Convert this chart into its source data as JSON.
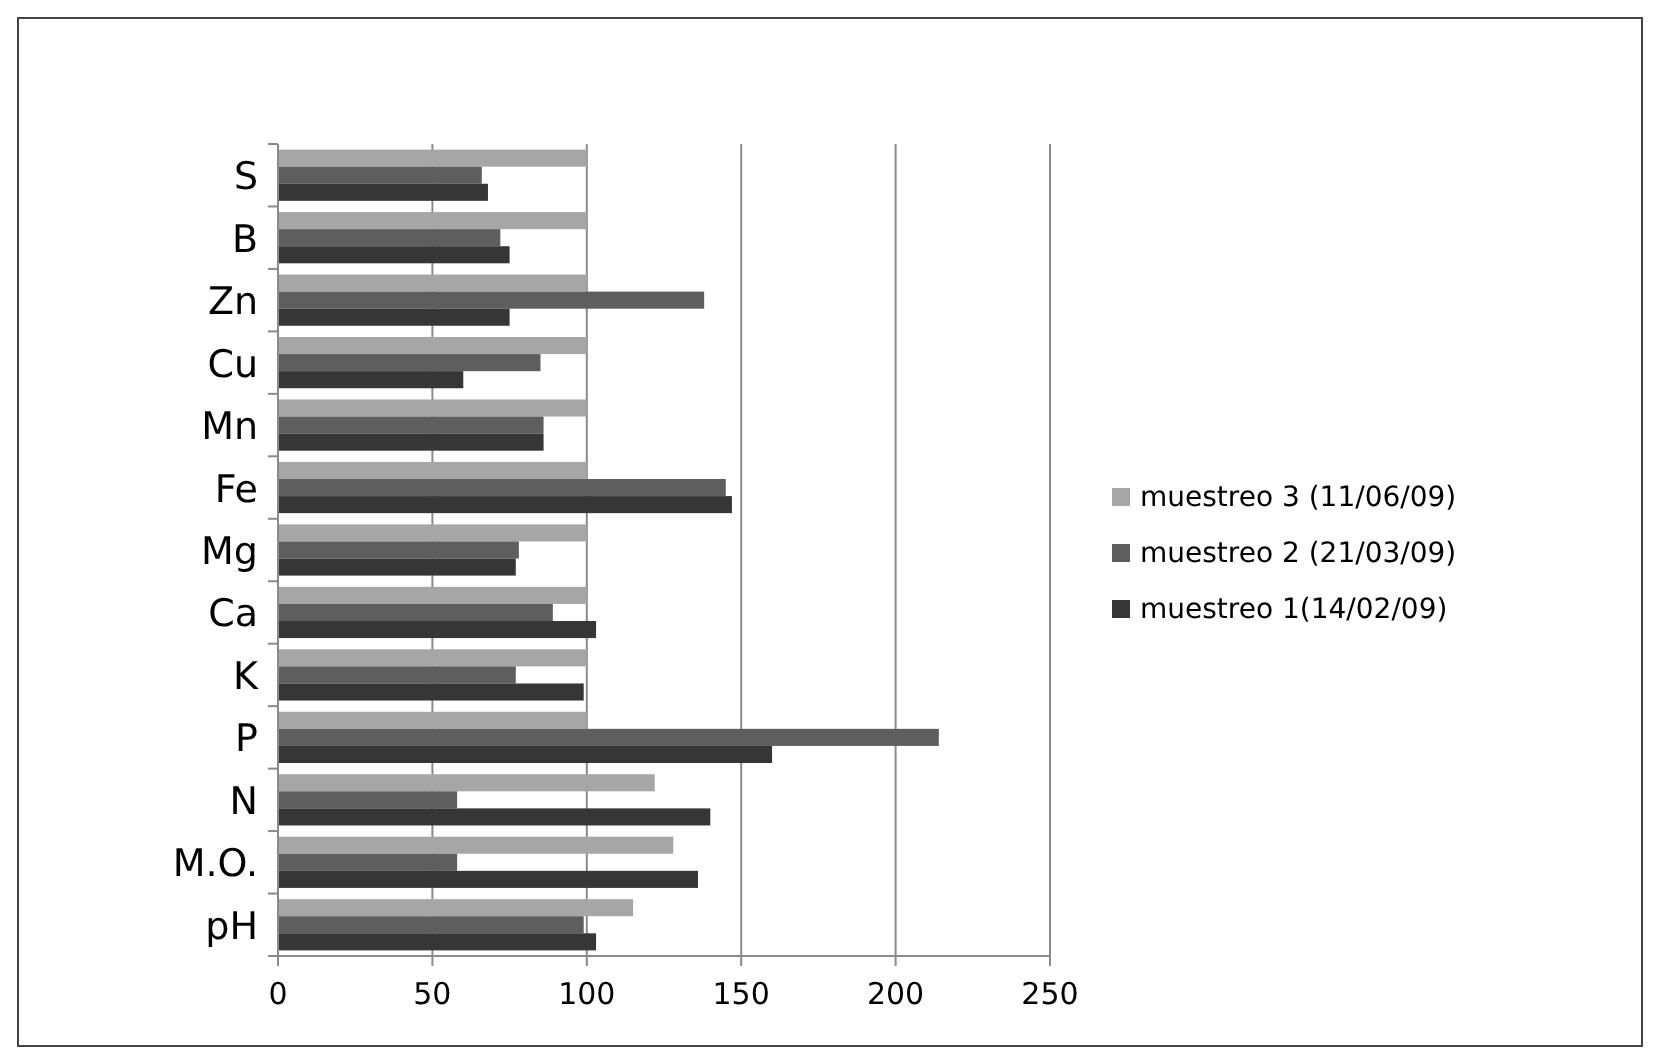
{
  "chart_data": {
    "type": "bar",
    "orientation": "horizontal",
    "categories": [
      "S",
      "B",
      "Zn",
      "Cu",
      "Mn",
      "Fe",
      "Mg",
      "Ca",
      "K",
      "P",
      "N",
      "M.O.",
      "pH"
    ],
    "series": [
      {
        "name": "muestreo 3 (11/06/09)",
        "color": "#a6a6a6",
        "values": [
          100,
          100,
          100,
          100,
          100,
          100,
          100,
          100,
          100,
          100,
          122,
          128,
          115
        ]
      },
      {
        "name": "muestreo 2 (21/03/09)",
        "color": "#5e5e5e",
        "values": [
          66,
          72,
          138,
          85,
          86,
          145,
          78,
          89,
          77,
          214,
          58,
          58,
          99
        ]
      },
      {
        "name": "muestreo 1(14/02/09)",
        "color": "#363636",
        "values": [
          68,
          75,
          75,
          60,
          86,
          147,
          77,
          103,
          99,
          160,
          140,
          136,
          103
        ]
      }
    ],
    "xlim": [
      0,
      250
    ],
    "xticks": [
      0,
      50,
      100,
      150,
      200,
      250
    ],
    "grid": "x",
    "legend": "right"
  }
}
